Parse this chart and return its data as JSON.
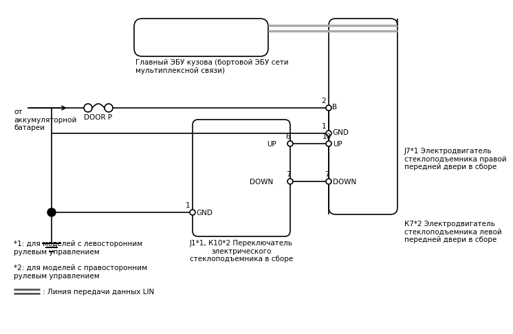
{
  "bg_color": "#ffffff",
  "line_color": "#000000",
  "fs": 7.5,
  "ecu_label": "Главный ЭБУ кузова (бортовой ЭБУ сети\nмультиплексной связи)",
  "battery_label": "от\nаккумуляторной\nбатареи",
  "door_p_label": "DOOR P",
  "switch_label": "J1*1, К10*2 Переключатель\nэлектрического\nстеклоподъемника в сборе",
  "motor_j7_label": "J7*1 Электродвигатель\nстеклоподъемника правой\nпередней двери в сборе",
  "motor_k7_label": "К7*2 Электродвигатель\nстеклоподъемника левой\nпередней двери в сборе",
  "note1": "*1: для моделей с левосторонним\nрулевым управлением",
  "note2": "*2: для моделей с правосторонним\nрулевым управлением",
  "note3": ": Линия передачи данных LIN"
}
